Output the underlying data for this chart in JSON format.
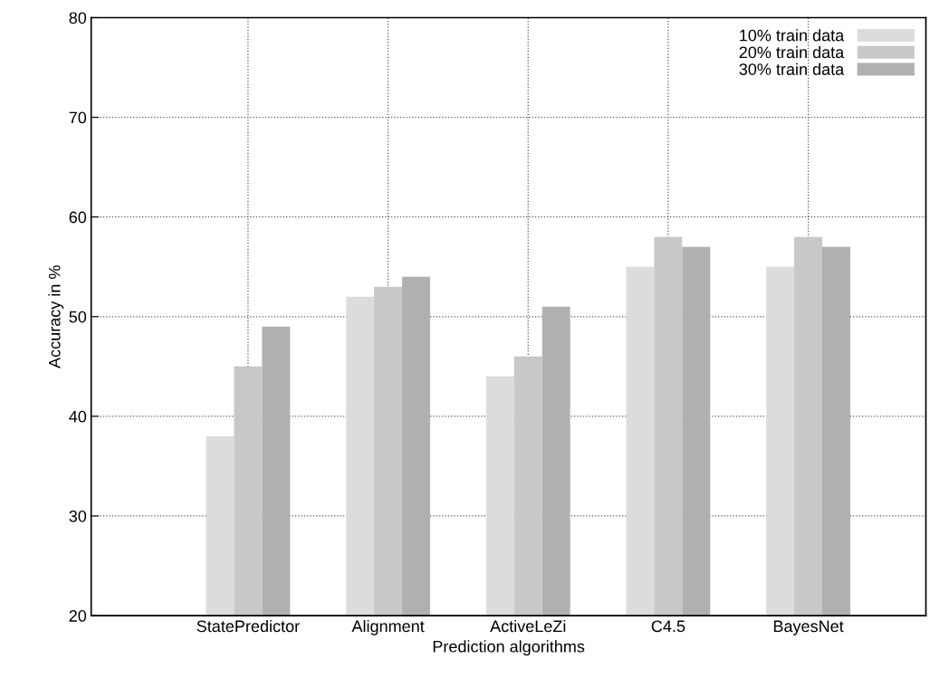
{
  "chart_data": {
    "type": "bar",
    "xlabel": "Prediction algorithms",
    "ylabel": "Accuracy in %",
    "categories": [
      "StatePredictor",
      "Alignment",
      "ActiveLeZi",
      "C4.5",
      "BayesNet"
    ],
    "series": [
      {
        "name": "10% train data",
        "color": "#dcdcdc",
        "values": [
          38,
          52,
          44,
          55,
          55
        ]
      },
      {
        "name": "20% train data",
        "color": "#c8c8c8",
        "values": [
          45,
          53,
          46,
          58,
          58
        ]
      },
      {
        "name": "30% train data",
        "color": "#b0b0b0",
        "values": [
          49,
          54,
          51,
          57,
          57
        ]
      }
    ],
    "ylim": [
      20,
      80
    ],
    "yticks": [
      20,
      30,
      40,
      50,
      60,
      70,
      80
    ],
    "grid": true,
    "legend": "top right"
  }
}
